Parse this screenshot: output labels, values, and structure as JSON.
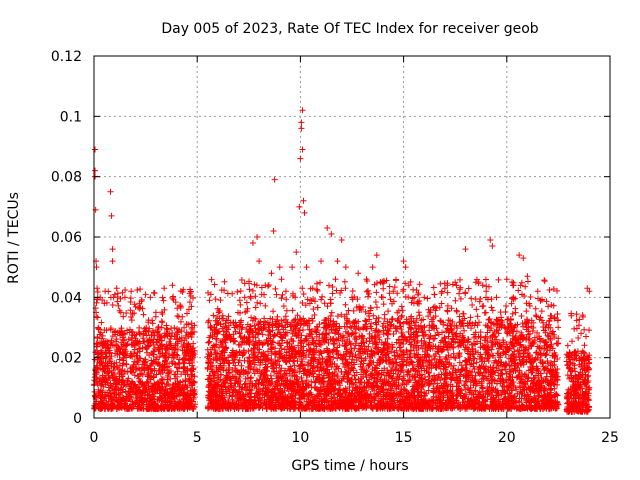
{
  "chart_data": {
    "type": "scatter",
    "title": "Day 005 of 2023, Rate Of TEC Index for receiver geob",
    "xlabel": "GPS time / hours",
    "ylabel": "ROTI / TECUs",
    "xlim": [
      0,
      25
    ],
    "ylim": [
      0,
      0.12
    ],
    "xticks": [
      0,
      5,
      10,
      15,
      20,
      25
    ],
    "xtick_labels": [
      "0",
      "5",
      "10",
      "15",
      "20",
      "25"
    ],
    "yticks": [
      0,
      0.02,
      0.04,
      0.06,
      0.08,
      0.1,
      0.12
    ],
    "ytick_labels": [
      "0",
      "0.02",
      "0.04",
      "0.06",
      "0.08",
      "0.1",
      "0.12"
    ],
    "grid": true,
    "marker": "+",
    "color": "#ff0000",
    "data_gaps_hours": [
      [
        4.9,
        5.5
      ],
      [
        22.5,
        22.9
      ]
    ],
    "series": [
      {
        "x": [
          0.05,
          0.05,
          0.05,
          0.08,
          0.1,
          0.12,
          0.15,
          0.1,
          0.2,
          0.3,
          0.5,
          0.8,
          0.85,
          0.9,
          0.9,
          0.95,
          1.1,
          1.3,
          1.5,
          1.8,
          2.2,
          2.5,
          3.0,
          3.4,
          3.8,
          4.2,
          4.6,
          5.6,
          6.2,
          6.8,
          7.3,
          7.7,
          7.9,
          8.0,
          8.3,
          8.6,
          8.7,
          8.75,
          9.0,
          9.3,
          9.6,
          9.8,
          9.95,
          10.0,
          10.05,
          10.1,
          10.05,
          10.1,
          10.15,
          10.2,
          10.3,
          10.6,
          11.0,
          11.3,
          11.5,
          11.7,
          11.8,
          12.0,
          12.2,
          12.5,
          12.8,
          13.2,
          13.5,
          13.7,
          14.0,
          14.5,
          15.0,
          15.1,
          15.5,
          16.0,
          16.5,
          17.0,
          17.5,
          18.0,
          18.5,
          19.0,
          19.2,
          19.3,
          19.5,
          20.0,
          20.3,
          20.6,
          20.8,
          21.0,
          21.5,
          22.0,
          22.3,
          23.0,
          23.3,
          23.6,
          23.9,
          24.0
        ],
        "y": [
          0.089,
          0.082,
          0.08,
          0.069,
          0.052,
          0.05,
          0.043,
          0.035,
          0.03,
          0.04,
          0.038,
          0.075,
          0.067,
          0.056,
          0.052,
          0.04,
          0.043,
          0.035,
          0.04,
          0.042,
          0.038,
          0.041,
          0.035,
          0.043,
          0.044,
          0.037,
          0.036,
          0.039,
          0.033,
          0.03,
          0.04,
          0.058,
          0.06,
          0.052,
          0.044,
          0.048,
          0.062,
          0.079,
          0.05,
          0.042,
          0.05,
          0.055,
          0.07,
          0.086,
          0.096,
          0.102,
          0.098,
          0.089,
          0.072,
          0.068,
          0.05,
          0.043,
          0.052,
          0.063,
          0.061,
          0.046,
          0.052,
          0.059,
          0.05,
          0.04,
          0.048,
          0.046,
          0.05,
          0.054,
          0.04,
          0.042,
          0.052,
          0.05,
          0.038,
          0.04,
          0.041,
          0.043,
          0.045,
          0.056,
          0.045,
          0.042,
          0.059,
          0.057,
          0.04,
          0.046,
          0.044,
          0.054,
          0.053,
          0.047,
          0.042,
          0.037,
          0.033,
          0.02,
          0.022,
          0.02,
          0.043,
          0.042
        ]
      }
    ],
    "bulk_bands": [
      {
        "x_start": 0.0,
        "x_end": 4.9,
        "y_low": 0.003,
        "y_high": 0.03
      },
      {
        "x_start": 5.5,
        "x_end": 22.5,
        "y_low": 0.003,
        "y_high": 0.033
      },
      {
        "x_start": 22.9,
        "x_end": 24.0,
        "y_low": 0.002,
        "y_high": 0.022
      }
    ]
  }
}
